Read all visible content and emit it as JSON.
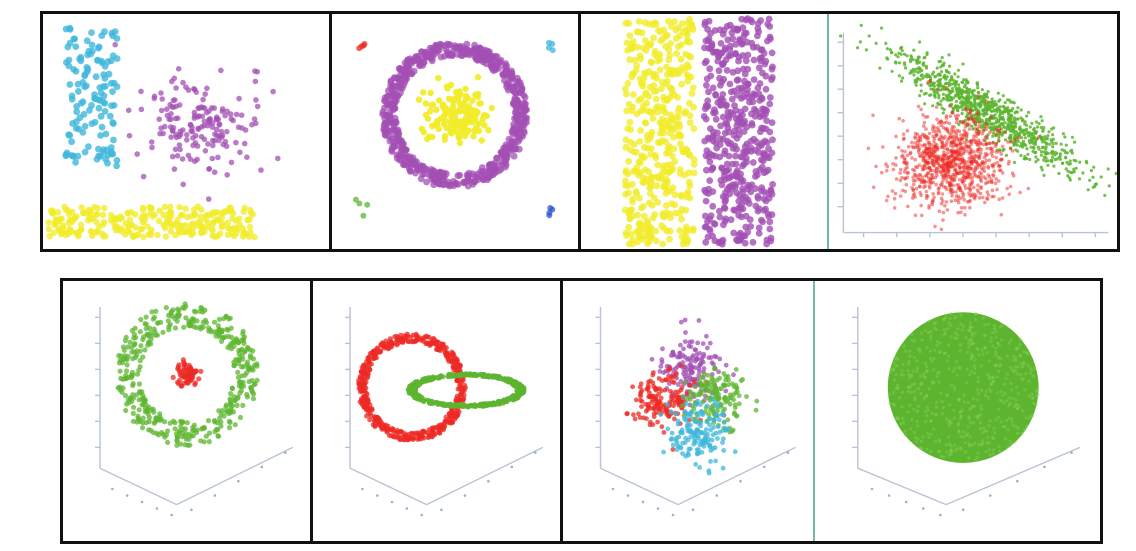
{
  "colors": {
    "cyan": "#3fb7dc",
    "magenta": "#a34fb4",
    "yellow": "#f1ec2a",
    "red": "#ee2a24",
    "green": "#5db52f",
    "blue": "#2d57c8",
    "panel_separator_teal": "#6fb9a6",
    "frame": "#111111"
  },
  "chart_data": [
    {
      "type": "scatter",
      "series": [
        {
          "color": "#3fb7dc",
          "x_range": [
            0.08,
            0.26
          ],
          "y_range": [
            0.06,
            0.65
          ]
        },
        {
          "color": "#a34fb4",
          "center": [
            0.55,
            0.48
          ],
          "spread": [
            0.11,
            0.1
          ]
        },
        {
          "color": "#f1ec2a",
          "x_range": [
            0.02,
            0.74
          ],
          "y_range": [
            0.82,
            0.95
          ]
        }
      ]
    },
    {
      "type": "scatter",
      "series": [
        {
          "color": "#a34fb4",
          "ring": {
            "center": [
              0.5,
              0.43
            ],
            "radius": 0.28,
            "width": 0.06
          }
        },
        {
          "color": "#f1ec2a",
          "center": [
            0.5,
            0.43
          ],
          "spread": [
            0.06,
            0.06
          ]
        },
        {
          "color": "#ee2a24",
          "center": [
            0.13,
            0.13
          ],
          "spread": [
            0.015,
            0.015
          ]
        },
        {
          "color": "#3fb7dc",
          "center": [
            0.9,
            0.13
          ],
          "spread": [
            0.015,
            0.015
          ]
        },
        {
          "color": "#5db52f",
          "center": [
            0.12,
            0.82
          ],
          "spread": [
            0.015,
            0.015
          ]
        },
        {
          "color": "#2d57c8",
          "center": [
            0.89,
            0.83
          ],
          "spread": [
            0.015,
            0.015
          ]
        }
      ]
    },
    {
      "type": "scatter",
      "series": [
        {
          "color": "#f1ec2a",
          "x_range": [
            0.18,
            0.46
          ],
          "y_range": [
            0.02,
            0.98
          ]
        },
        {
          "color": "#a34fb4",
          "x_range": [
            0.5,
            0.78
          ],
          "y_range": [
            0.02,
            0.98
          ]
        }
      ]
    },
    {
      "type": "scatter",
      "series": [
        {
          "color": "#5db52f",
          "center": [
            0.55,
            0.42
          ],
          "elongated": true
        },
        {
          "color": "#ee2a24",
          "center": [
            0.42,
            0.62
          ],
          "spread": [
            0.09,
            0.1
          ]
        }
      ]
    },
    {
      "type": "scatter",
      "projection": "3d",
      "series": [
        {
          "color": "#5db52f",
          "ring": {
            "center": [
              0.5,
              0.36
            ],
            "radius": 0.24,
            "width": 0.1
          }
        },
        {
          "color": "#ee2a24",
          "center": [
            0.5,
            0.36
          ],
          "spread": [
            0.025,
            0.025
          ]
        }
      ]
    },
    {
      "type": "scatter",
      "projection": "3d",
      "series": [
        {
          "color": "#ee2a24",
          "ring": {
            "center": [
              0.4,
              0.41
            ],
            "radius": 0.2,
            "width": 0.035
          }
        },
        {
          "color": "#5db52f",
          "ellipse": {
            "center": [
              0.62,
              0.42
            ],
            "rx": 0.22,
            "ry": 0.06
          }
        }
      ]
    },
    {
      "type": "scatter",
      "projection": "3d",
      "series": [
        {
          "color": "#a34fb4",
          "center": [
            0.51,
            0.34
          ],
          "spread": [
            0.06,
            0.06
          ]
        },
        {
          "color": "#ee2a24",
          "center": [
            0.39,
            0.46
          ],
          "spread": [
            0.06,
            0.06
          ]
        },
        {
          "color": "#5db52f",
          "center": [
            0.62,
            0.45
          ],
          "spread": [
            0.06,
            0.06
          ]
        },
        {
          "color": "#3fb7dc",
          "center": [
            0.54,
            0.58
          ],
          "spread": [
            0.06,
            0.06
          ]
        }
      ]
    },
    {
      "type": "scatter",
      "projection": "3d",
      "series": [
        {
          "color": "#5db52f",
          "disk": {
            "center": [
              0.52,
              0.41
            ],
            "radius": 0.29
          }
        }
      ]
    }
  ]
}
